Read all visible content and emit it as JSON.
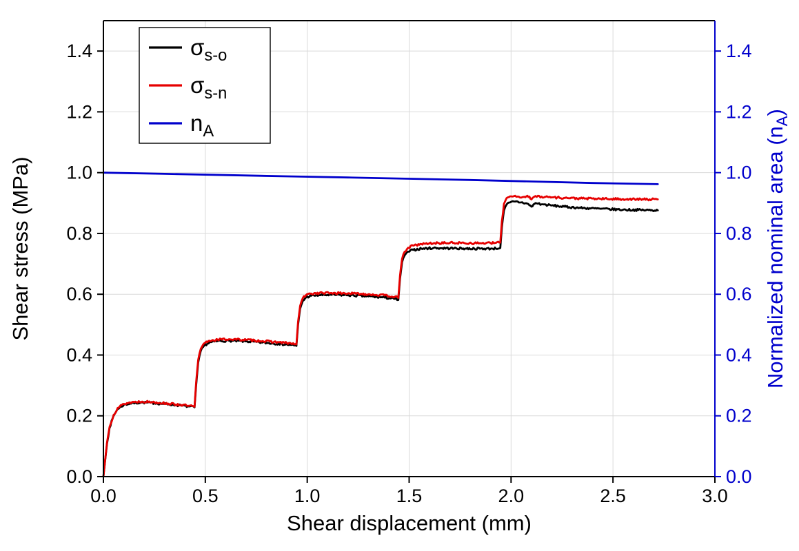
{
  "chart_data": {
    "type": "line",
    "title": "",
    "xlabel": "Shear displacement (mm)",
    "ylabel_left": "Shear stress (MPa)",
    "ylabel_right_parts": {
      "pre": "Normalized nominal area (n",
      "sub": "A",
      "post": ")"
    },
    "xlim": [
      0,
      3
    ],
    "ylim": [
      0,
      1.5
    ],
    "xtick_values": [
      0,
      0.5,
      1,
      1.5,
      2,
      2.5,
      3
    ],
    "xtick_labels": [
      "0.0",
      "0.5",
      "1.0",
      "1.5",
      "2.0",
      "2.5",
      "3.0"
    ],
    "ytick_values": [
      0,
      0.2,
      0.4,
      0.6,
      0.8,
      1.0,
      1.2,
      1.4
    ],
    "ytick_labels": [
      "0.0",
      "0.2",
      "0.4",
      "0.6",
      "0.8",
      "1.0",
      "1.2",
      "1.4"
    ],
    "grid": true,
    "grid_color": "#d9d9d9",
    "axis_colors": {
      "left": "#000000",
      "bottom": "#000000",
      "top": "#000000",
      "right": "#0000cc"
    },
    "legend_position": "top-left",
    "series": [
      {
        "name": "sigma-s-o",
        "label": {
          "base": "σ",
          "sub": "s-o"
        },
        "color": "#000000",
        "axis": "left",
        "noise": 0.0035,
        "seed": 7,
        "x": [
          0,
          0.008,
          0.018,
          0.03,
          0.05,
          0.07,
          0.1,
          0.14,
          0.19,
          0.25,
          0.32,
          0.38,
          0.42,
          0.447,
          0.455,
          0.465,
          0.478,
          0.495,
          0.52,
          0.56,
          0.62,
          0.7,
          0.78,
          0.86,
          0.92,
          0.947,
          0.955,
          0.965,
          0.978,
          0.995,
          1.02,
          1.06,
          1.12,
          1.2,
          1.3,
          1.38,
          1.43,
          1.447,
          1.455,
          1.465,
          1.478,
          1.495,
          1.52,
          1.56,
          1.62,
          1.72,
          1.82,
          1.9,
          1.947,
          1.955,
          1.965,
          1.978,
          1.995,
          2.02,
          2.05,
          2.08,
          2.1,
          2.12,
          2.15,
          2.2,
          2.26,
          2.34,
          2.44,
          2.55,
          2.65,
          2.72
        ],
        "y": [
          0,
          0.05,
          0.11,
          0.16,
          0.2,
          0.223,
          0.236,
          0.242,
          0.244,
          0.242,
          0.238,
          0.234,
          0.231,
          0.228,
          0.3,
          0.375,
          0.414,
          0.432,
          0.441,
          0.446,
          0.447,
          0.445,
          0.441,
          0.437,
          0.433,
          0.43,
          0.5,
          0.552,
          0.578,
          0.59,
          0.595,
          0.597,
          0.598,
          0.597,
          0.593,
          0.589,
          0.585,
          0.581,
          0.65,
          0.705,
          0.728,
          0.74,
          0.746,
          0.75,
          0.752,
          0.751,
          0.75,
          0.75,
          0.752,
          0.82,
          0.875,
          0.895,
          0.902,
          0.905,
          0.902,
          0.898,
          0.888,
          0.9,
          0.896,
          0.892,
          0.888,
          0.884,
          0.881,
          0.878,
          0.877,
          0.876
        ]
      },
      {
        "name": "sigma-s-n",
        "label": {
          "base": "σ",
          "sub": "s-n"
        },
        "color": "#e60000",
        "axis": "left",
        "noise": 0.0035,
        "seed": 13,
        "x": [
          0,
          0.008,
          0.018,
          0.03,
          0.05,
          0.07,
          0.1,
          0.14,
          0.19,
          0.25,
          0.32,
          0.38,
          0.42,
          0.447,
          0.455,
          0.465,
          0.478,
          0.495,
          0.52,
          0.56,
          0.62,
          0.7,
          0.78,
          0.86,
          0.92,
          0.947,
          0.955,
          0.965,
          0.978,
          0.995,
          1.02,
          1.06,
          1.12,
          1.2,
          1.3,
          1.38,
          1.43,
          1.447,
          1.455,
          1.465,
          1.478,
          1.495,
          1.52,
          1.56,
          1.62,
          1.72,
          1.82,
          1.9,
          1.947,
          1.955,
          1.965,
          1.978,
          1.995,
          2.02,
          2.05,
          2.08,
          2.1,
          2.12,
          2.15,
          2.2,
          2.26,
          2.34,
          2.44,
          2.55,
          2.65,
          2.72
        ],
        "y": [
          0,
          0.052,
          0.113,
          0.163,
          0.203,
          0.226,
          0.239,
          0.245,
          0.247,
          0.245,
          0.24,
          0.236,
          0.233,
          0.23,
          0.31,
          0.384,
          0.421,
          0.439,
          0.447,
          0.451,
          0.452,
          0.45,
          0.446,
          0.442,
          0.438,
          0.435,
          0.51,
          0.561,
          0.587,
          0.598,
          0.602,
          0.604,
          0.604,
          0.603,
          0.6,
          0.596,
          0.592,
          0.588,
          0.66,
          0.716,
          0.74,
          0.753,
          0.76,
          0.765,
          0.768,
          0.769,
          0.768,
          0.768,
          0.77,
          0.84,
          0.897,
          0.916,
          0.922,
          0.924,
          0.918,
          0.924,
          0.912,
          0.923,
          0.921,
          0.919,
          0.917,
          0.915,
          0.914,
          0.913,
          0.912,
          0.912
        ]
      },
      {
        "name": "n-A",
        "label": {
          "base": "n",
          "sub": "A"
        },
        "color": "#0000cc",
        "axis": "right",
        "noise": 0,
        "seed": 1,
        "x": [
          0,
          0.3,
          0.6,
          0.9,
          1.2,
          1.5,
          1.8,
          2.1,
          2.4,
          2.72
        ],
        "y": [
          1.0,
          0.996,
          0.992,
          0.988,
          0.984,
          0.98,
          0.976,
          0.971,
          0.966,
          0.962
        ]
      }
    ]
  }
}
